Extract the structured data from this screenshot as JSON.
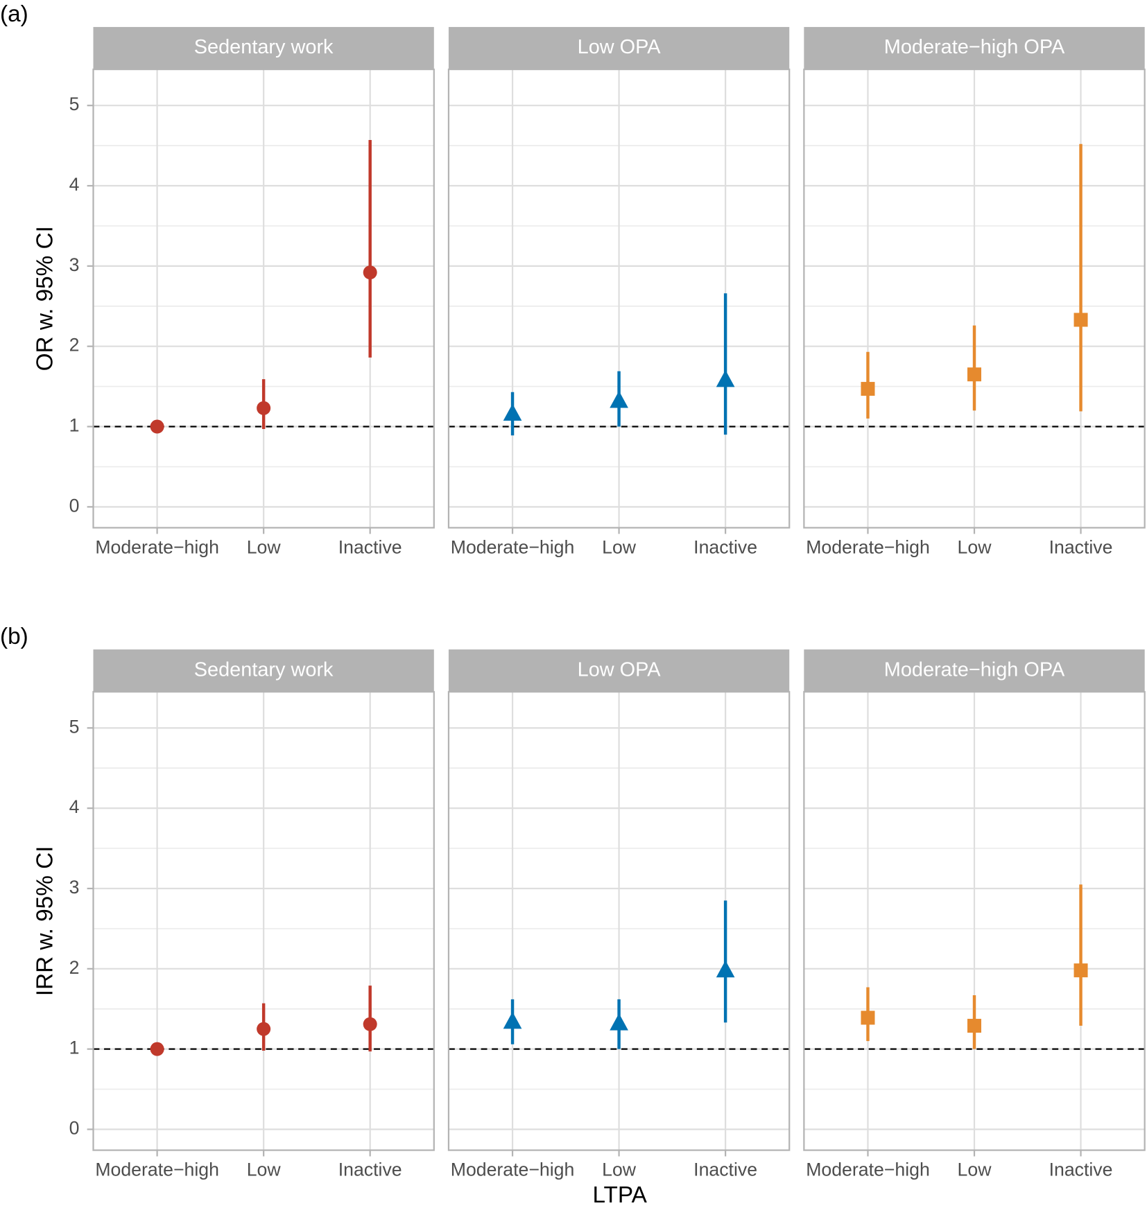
{
  "chart_data": [
    {
      "type": "pointrange",
      "panel_label": "(a)",
      "y_label": "OR w. 95% CI",
      "ylim": [
        -0.26,
        5.45
      ],
      "yticks": [
        0,
        1,
        2,
        3,
        4,
        5
      ],
      "minor_grid": true,
      "reference_line": 1,
      "facets": [
        {
          "title": "Sedentary work",
          "color": "#c0392b",
          "shape": "circle",
          "categories": [
            "Moderate−high",
            "Low",
            "Inactive"
          ],
          "values": [
            1,
            1.23,
            2.92
          ],
          "lower": [
            null,
            0.97,
            1.86
          ],
          "upper": [
            null,
            1.59,
            4.57
          ]
        },
        {
          "title": "Low OPA",
          "color": "#0072b2",
          "shape": "triangle",
          "categories": [
            "Moderate−high",
            "Low",
            "Inactive"
          ],
          "values": [
            1.15,
            1.31,
            1.57
          ],
          "lower": [
            0.89,
            1.0,
            0.9
          ],
          "upper": [
            1.43,
            1.69,
            2.66
          ]
        },
        {
          "title": "Moderate−high OPA",
          "color": "#e68a2e",
          "shape": "square",
          "categories": [
            "Moderate−high",
            "Low",
            "Inactive"
          ],
          "values": [
            1.47,
            1.65,
            2.33
          ],
          "lower": [
            1.1,
            1.2,
            1.19
          ],
          "upper": [
            1.93,
            2.26,
            4.52
          ]
        }
      ]
    },
    {
      "type": "pointrange",
      "panel_label": "(b)",
      "y_label": "IRR w. 95% CI",
      "x_label": "LTPA",
      "ylim": [
        -0.26,
        5.45
      ],
      "yticks": [
        0,
        1,
        2,
        3,
        4,
        5
      ],
      "minor_grid": true,
      "reference_line": 1,
      "facets": [
        {
          "title": "Sedentary work",
          "color": "#c0392b",
          "shape": "circle",
          "categories": [
            "Moderate−high",
            "Low",
            "Inactive"
          ],
          "values": [
            1,
            1.25,
            1.31
          ],
          "lower": [
            null,
            0.98,
            0.97
          ],
          "upper": [
            null,
            1.57,
            1.79
          ]
        },
        {
          "title": "Low OPA",
          "color": "#0072b2",
          "shape": "triangle",
          "categories": [
            "Moderate−high",
            "Low",
            "Inactive"
          ],
          "values": [
            1.33,
            1.31,
            1.97
          ],
          "lower": [
            1.06,
            1.0,
            1.33
          ],
          "upper": [
            1.62,
            1.62,
            2.85
          ]
        },
        {
          "title": "Moderate−high OPA",
          "color": "#e68a2e",
          "shape": "square",
          "categories": [
            "Moderate−high",
            "Low",
            "Inactive"
          ],
          "values": [
            1.39,
            1.29,
            1.98
          ],
          "lower": [
            1.1,
            1.0,
            1.29
          ],
          "upper": [
            1.77,
            1.67,
            3.05
          ]
        }
      ]
    }
  ]
}
